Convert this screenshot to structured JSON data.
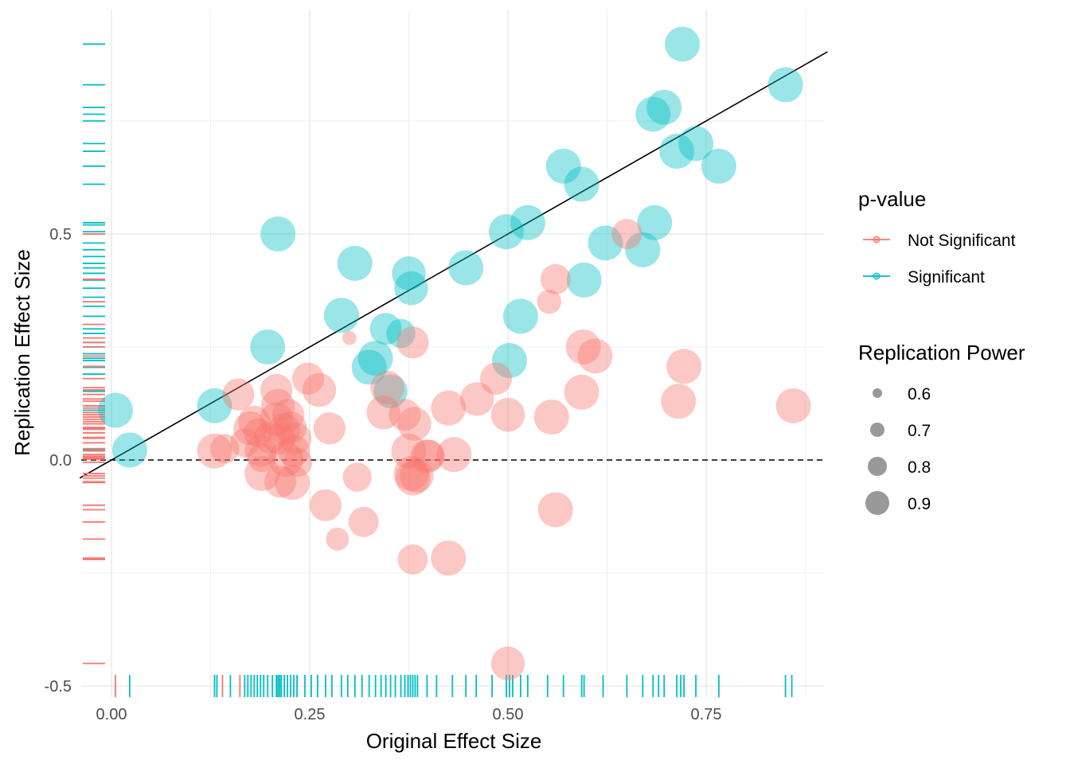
{
  "chart_data": {
    "type": "scatter",
    "xlabel": "Original Effect Size",
    "ylabel": "Replication Effect Size",
    "xlim": [
      -0.04,
      0.9
    ],
    "ylim": [
      -0.5,
      0.9
    ],
    "x_ticks": [
      0.0,
      0.25,
      0.5,
      0.75
    ],
    "x_tick_labels": [
      "0.00",
      "0.25",
      "0.50",
      "0.75"
    ],
    "y_ticks": [
      -0.5,
      0.0,
      0.5
    ],
    "y_tick_labels": [
      "-0.5",
      "0.0",
      "0.5"
    ],
    "grid": true,
    "reference_lines": [
      {
        "kind": "identity",
        "style": "solid",
        "color": "#000000",
        "slope": 1,
        "intercept": 0
      },
      {
        "kind": "horizontal",
        "style": "dashed",
        "color": "#000000",
        "y": 0
      }
    ],
    "marginal_rugs": true,
    "legend_color": {
      "title": "p-value",
      "entries": [
        {
          "label": "Not Significant",
          "color": "#F8766D"
        },
        {
          "label": "Significant",
          "color": "#00BFC4"
        }
      ]
    },
    "legend_size": {
      "title": "Replication Power",
      "entries": [
        {
          "label": "0.6",
          "value": 0.6
        },
        {
          "label": "0.7",
          "value": 0.7
        },
        {
          "label": "0.8",
          "value": 0.8
        },
        {
          "label": "0.9",
          "value": 0.9
        }
      ]
    },
    "legend_position": "right",
    "series": [
      {
        "name": "Significant",
        "color": "#00BFC4",
        "points": [
          {
            "x": 0.005,
            "y": 0.11,
            "power": 0.9
          },
          {
            "x": 0.023,
            "y": 0.022,
            "power": 0.9
          },
          {
            "x": 0.13,
            "y": 0.12,
            "power": 0.9
          },
          {
            "x": 0.197,
            "y": 0.25,
            "power": 0.9
          },
          {
            "x": 0.21,
            "y": 0.5,
            "power": 0.9
          },
          {
            "x": 0.29,
            "y": 0.32,
            "power": 0.9
          },
          {
            "x": 0.307,
            "y": 0.435,
            "power": 0.9
          },
          {
            "x": 0.325,
            "y": 0.205,
            "power": 0.9
          },
          {
            "x": 0.333,
            "y": 0.225,
            "power": 0.9
          },
          {
            "x": 0.346,
            "y": 0.29,
            "power": 0.85
          },
          {
            "x": 0.352,
            "y": 0.152,
            "power": 0.88
          },
          {
            "x": 0.365,
            "y": 0.28,
            "power": 0.8
          },
          {
            "x": 0.375,
            "y": 0.413,
            "power": 0.88
          },
          {
            "x": 0.378,
            "y": 0.38,
            "power": 0.88
          },
          {
            "x": 0.447,
            "y": 0.425,
            "power": 0.9
          },
          {
            "x": 0.498,
            "y": 0.505,
            "power": 0.9
          },
          {
            "x": 0.502,
            "y": 0.22,
            "power": 0.9
          },
          {
            "x": 0.516,
            "y": 0.318,
            "power": 0.9
          },
          {
            "x": 0.525,
            "y": 0.525,
            "power": 0.9
          },
          {
            "x": 0.57,
            "y": 0.65,
            "power": 0.9
          },
          {
            "x": 0.593,
            "y": 0.61,
            "power": 0.9
          },
          {
            "x": 0.596,
            "y": 0.398,
            "power": 0.9
          },
          {
            "x": 0.623,
            "y": 0.48,
            "power": 0.9
          },
          {
            "x": 0.67,
            "y": 0.465,
            "power": 0.9
          },
          {
            "x": 0.683,
            "y": 0.765,
            "power": 0.9
          },
          {
            "x": 0.685,
            "y": 0.525,
            "power": 0.9
          },
          {
            "x": 0.697,
            "y": 0.78,
            "power": 0.9
          },
          {
            "x": 0.713,
            "y": 0.683,
            "power": 0.9
          },
          {
            "x": 0.72,
            "y": 0.92,
            "power": 0.9
          },
          {
            "x": 0.737,
            "y": 0.7,
            "power": 0.9
          },
          {
            "x": 0.766,
            "y": 0.65,
            "power": 0.9
          },
          {
            "x": 0.85,
            "y": 0.83,
            "power": 0.9
          }
        ]
      },
      {
        "name": "Not Significant",
        "color": "#F8766D",
        "points": [
          {
            "x": 0.13,
            "y": 0.02,
            "power": 0.9
          },
          {
            "x": 0.143,
            "y": 0.025,
            "power": 0.8
          },
          {
            "x": 0.16,
            "y": 0.145,
            "power": 0.85
          },
          {
            "x": 0.168,
            "y": 0.038,
            "power": 0.8
          },
          {
            "x": 0.175,
            "y": 0.07,
            "power": 0.88
          },
          {
            "x": 0.18,
            "y": 0.085,
            "power": 0.85
          },
          {
            "x": 0.185,
            "y": 0.06,
            "power": 0.8
          },
          {
            "x": 0.188,
            "y": 0.02,
            "power": 0.85
          },
          {
            "x": 0.19,
            "y": 0.005,
            "power": 0.8
          },
          {
            "x": 0.19,
            "y": -0.03,
            "power": 0.9
          },
          {
            "x": 0.2,
            "y": 0.05,
            "power": 0.85
          },
          {
            "x": 0.208,
            "y": 0.155,
            "power": 0.85
          },
          {
            "x": 0.208,
            "y": 0.09,
            "power": 0.88
          },
          {
            "x": 0.21,
            "y": 0.12,
            "power": 0.88
          },
          {
            "x": 0.212,
            "y": 0.048,
            "power": 0.85
          },
          {
            "x": 0.213,
            "y": -0.048,
            "power": 0.85
          },
          {
            "x": 0.218,
            "y": 0.068,
            "power": 0.85
          },
          {
            "x": 0.22,
            "y": 0.002,
            "power": 0.9
          },
          {
            "x": 0.223,
            "y": 0.1,
            "power": 0.85
          },
          {
            "x": 0.226,
            "y": 0.072,
            "power": 0.85
          },
          {
            "x": 0.228,
            "y": -0.05,
            "power": 0.9
          },
          {
            "x": 0.23,
            "y": 0.02,
            "power": 0.85
          },
          {
            "x": 0.232,
            "y": 0.048,
            "power": 0.85
          },
          {
            "x": 0.235,
            "y": -0.005,
            "power": 0.8
          },
          {
            "x": 0.248,
            "y": 0.18,
            "power": 0.85
          },
          {
            "x": 0.262,
            "y": 0.155,
            "power": 0.88
          },
          {
            "x": 0.27,
            "y": -0.1,
            "power": 0.85
          },
          {
            "x": 0.275,
            "y": 0.07,
            "power": 0.85
          },
          {
            "x": 0.285,
            "y": -0.175,
            "power": 0.7
          },
          {
            "x": 0.3,
            "y": 0.27,
            "power": 0.55
          },
          {
            "x": 0.31,
            "y": -0.038,
            "power": 0.8
          },
          {
            "x": 0.318,
            "y": -0.137,
            "power": 0.82
          },
          {
            "x": 0.343,
            "y": 0.105,
            "power": 0.88
          },
          {
            "x": 0.348,
            "y": 0.16,
            "power": 0.88
          },
          {
            "x": 0.37,
            "y": 0.1,
            "power": 0.85
          },
          {
            "x": 0.375,
            "y": 0.02,
            "power": 0.9
          },
          {
            "x": 0.378,
            "y": -0.03,
            "power": 0.9
          },
          {
            "x": 0.38,
            "y": -0.04,
            "power": 0.9
          },
          {
            "x": 0.38,
            "y": -0.22,
            "power": 0.82
          },
          {
            "x": 0.38,
            "y": 0.26,
            "power": 0.85
          },
          {
            "x": 0.382,
            "y": 0.08,
            "power": 0.88
          },
          {
            "x": 0.385,
            "y": -0.035,
            "power": 0.88
          },
          {
            "x": 0.398,
            "y": 0.008,
            "power": 0.88
          },
          {
            "x": 0.4,
            "y": 0.01,
            "power": 0.85
          },
          {
            "x": 0.425,
            "y": 0.115,
            "power": 0.9
          },
          {
            "x": 0.425,
            "y": -0.217,
            "power": 0.9
          },
          {
            "x": 0.432,
            "y": 0.012,
            "power": 0.9
          },
          {
            "x": 0.461,
            "y": 0.135,
            "power": 0.88
          },
          {
            "x": 0.485,
            "y": 0.18,
            "power": 0.85
          },
          {
            "x": 0.5,
            "y": 0.1,
            "power": 0.88
          },
          {
            "x": 0.5,
            "y": -0.45,
            "power": 0.88
          },
          {
            "x": 0.555,
            "y": 0.095,
            "power": 0.9
          },
          {
            "x": 0.552,
            "y": 0.35,
            "power": 0.72
          },
          {
            "x": 0.56,
            "y": 0.4,
            "power": 0.82
          },
          {
            "x": 0.56,
            "y": -0.11,
            "power": 0.9
          },
          {
            "x": 0.593,
            "y": 0.15,
            "power": 0.9
          },
          {
            "x": 0.595,
            "y": 0.25,
            "power": 0.9
          },
          {
            "x": 0.61,
            "y": 0.23,
            "power": 0.9
          },
          {
            "x": 0.65,
            "y": 0.5,
            "power": 0.82
          },
          {
            "x": 0.715,
            "y": 0.13,
            "power": 0.9
          },
          {
            "x": 0.722,
            "y": 0.207,
            "power": 0.9
          },
          {
            "x": 0.86,
            "y": 0.12,
            "power": 0.9
          }
        ]
      }
    ],
    "rug_x": {
      "Significant": [
        0.023,
        0.13,
        0.133,
        0.15,
        0.168,
        0.172,
        0.176,
        0.18,
        0.184,
        0.188,
        0.192,
        0.197,
        0.203,
        0.208,
        0.21,
        0.212,
        0.214,
        0.218,
        0.222,
        0.226,
        0.23,
        0.234,
        0.244,
        0.252,
        0.26,
        0.27,
        0.278,
        0.29,
        0.298,
        0.307,
        0.316,
        0.325,
        0.333,
        0.34,
        0.346,
        0.352,
        0.358,
        0.365,
        0.37,
        0.374,
        0.377,
        0.38,
        0.383,
        0.386,
        0.398,
        0.41,
        0.43,
        0.447,
        0.46,
        0.48,
        0.498,
        0.502,
        0.506,
        0.516,
        0.525,
        0.55,
        0.57,
        0.593,
        0.596,
        0.62,
        0.65,
        0.67,
        0.683,
        0.69,
        0.697,
        0.713,
        0.718,
        0.722,
        0.737,
        0.766,
        0.85,
        0.858
      ],
      "Not Significant": [
        0.005,
        0.14,
        0.162
      ]
    },
    "rug_y": {
      "Significant": [
        0.92,
        0.83,
        0.78,
        0.765,
        0.75,
        0.7,
        0.683,
        0.65,
        0.61,
        0.525,
        0.52,
        0.505,
        0.5,
        0.48,
        0.465,
        0.45,
        0.435,
        0.425,
        0.413,
        0.398,
        0.38,
        0.36,
        0.34,
        0.318,
        0.29,
        0.28,
        0.26,
        0.25,
        0.235,
        0.225,
        0.22,
        0.205,
        0.19,
        0.152,
        0.12,
        0.11,
        0.022
      ],
      "Not Significant": [
        0.5,
        0.4,
        0.35,
        0.3,
        0.27,
        0.26,
        0.25,
        0.23,
        0.207,
        0.18,
        0.16,
        0.155,
        0.145,
        0.135,
        0.13,
        0.12,
        0.115,
        0.105,
        0.1,
        0.095,
        0.09,
        0.085,
        0.08,
        0.072,
        0.07,
        0.068,
        0.06,
        0.05,
        0.048,
        0.038,
        0.025,
        0.02,
        0.012,
        0.008,
        0.005,
        0.002,
        -0.005,
        -0.03,
        -0.035,
        -0.04,
        -0.048,
        -0.05,
        -0.1,
        -0.11,
        -0.137,
        -0.175,
        -0.217,
        -0.22,
        -0.45
      ]
    }
  }
}
